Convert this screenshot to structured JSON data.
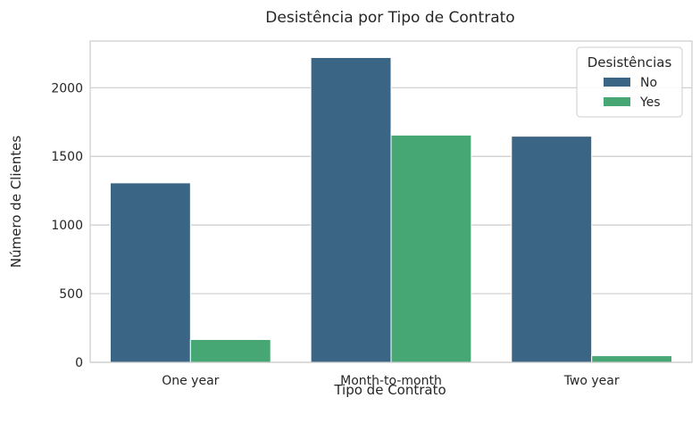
{
  "chart_data": {
    "type": "bar",
    "title": "Desistência por Tipo de Contrato",
    "xlabel": "Tipo de Contrato",
    "ylabel": "Número de Clientes",
    "categories": [
      "One year",
      "Month-to-month",
      "Two year"
    ],
    "series": [
      {
        "name": "No",
        "color": "#3b6584",
        "values": [
          1307,
          2220,
          1647
        ]
      },
      {
        "name": "Yes",
        "color": "#46a775",
        "values": [
          166,
          1655,
          48
        ]
      }
    ],
    "ylim": [
      0,
      2340
    ],
    "yticks": [
      0,
      500,
      1000,
      1500,
      2000
    ],
    "grid": true,
    "legend": {
      "title": "Desistências",
      "position": "top-right"
    }
  }
}
